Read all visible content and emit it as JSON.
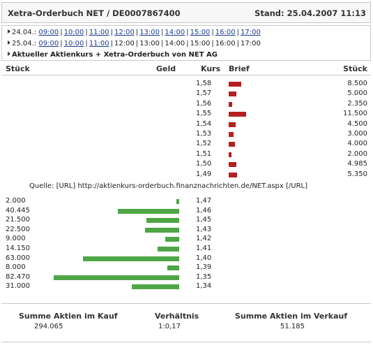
{
  "header": {
    "title": "Xetra-Orderbuch NET / DE0007867400",
    "stand": "Stand: 25.04.2007 11:13"
  },
  "nav": {
    "row1": {
      "date": "24.04.:",
      "times": [
        "09:00",
        "10:00",
        "11:00",
        "12:00",
        "13:00",
        "14:00",
        "15:00",
        "16:00",
        "17:00"
      ]
    },
    "row2": {
      "date": "25.04.:",
      "times": [
        "09:00",
        "10:00",
        "11:00",
        "12:00",
        "13:00",
        "14:00",
        "15:00",
        "16:00",
        "17:00"
      ],
      "linked_count": 3
    },
    "row3": {
      "label": "Aktueller Aktienkurs + Xetra-Orderbuch von NET AG"
    }
  },
  "columns": {
    "stueck_left": "Stück",
    "geld": "Geld",
    "kurs": "Kurs",
    "brief": "Brief",
    "stueck_right": "Stück"
  },
  "ask": [
    {
      "kurs": "1,58",
      "qty": "8.500",
      "amount": 8500
    },
    {
      "kurs": "1,57",
      "qty": "5.000",
      "amount": 5000
    },
    {
      "kurs": "1,56",
      "qty": "2.350",
      "amount": 2350
    },
    {
      "kurs": "1,55",
      "qty": "11.500",
      "amount": 11500
    },
    {
      "kurs": "1,54",
      "qty": "4.500",
      "amount": 4500
    },
    {
      "kurs": "1,53",
      "qty": "3.000",
      "amount": 3000
    },
    {
      "kurs": "1,52",
      "qty": "4.000",
      "amount": 4000
    },
    {
      "kurs": "1,51",
      "qty": "2.000",
      "amount": 2000
    },
    {
      "kurs": "1,50",
      "qty": "4.985",
      "amount": 4985
    },
    {
      "kurs": "1,49",
      "qty": "5.350",
      "amount": 5350
    }
  ],
  "quelle": "Quelle: [URL] http://aktienkurs-orderbuch.finanznachrichten.de/NET.aspx [/URL]",
  "bid": [
    {
      "kurs": "1,47",
      "qty": "2.000",
      "amount": 2000
    },
    {
      "kurs": "1,46",
      "qty": "40.445",
      "amount": 40445
    },
    {
      "kurs": "1,45",
      "qty": "21.500",
      "amount": 21500
    },
    {
      "kurs": "1,43",
      "qty": "22.500",
      "amount": 22500
    },
    {
      "kurs": "1,42",
      "qty": "9.000",
      "amount": 9000
    },
    {
      "kurs": "1,41",
      "qty": "14.150",
      "amount": 14150
    },
    {
      "kurs": "1,40",
      "qty": "63.000",
      "amount": 63000
    },
    {
      "kurs": "1,39",
      "qty": "8.000",
      "amount": 8000
    },
    {
      "kurs": "1,35",
      "qty": "82.470",
      "amount": 82470
    },
    {
      "kurs": "1,34",
      "qty": "31.000",
      "amount": 31000
    }
  ],
  "summary": {
    "kauf_label": "Summe Aktien im Kauf",
    "kauf_value": "294.065",
    "verhaeltnis_label": "Verhältnis",
    "verhaeltnis_value": "1:0,17",
    "verkauf_label": "Summe Aktien im Verkauf",
    "verkauf_value": "51.185"
  },
  "colors": {
    "ask_bar": "#b51f1f",
    "bid_bar": "#4ea646",
    "link": "#1b3d8f",
    "border": "#c8c8c8"
  }
}
